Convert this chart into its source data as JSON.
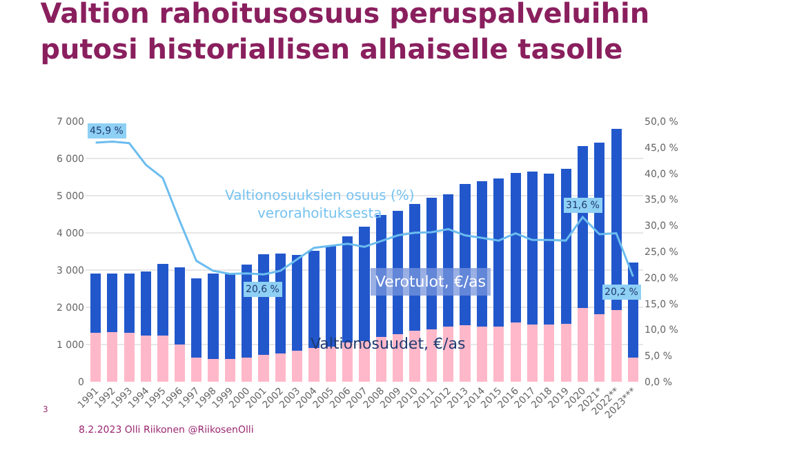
{
  "chart_data": {
    "type": "bar",
    "title": "Valtion rahoitusosuus peruspalveluihin\nputosi historiallisen alhaiselle tasolle",
    "categories": [
      "1991",
      "1992",
      "1993",
      "1994",
      "1995",
      "1996",
      "1997",
      "1998",
      "1999",
      "2000",
      "2001",
      "2002",
      "2003",
      "2004",
      "2005",
      "2006",
      "2007",
      "2008",
      "2009",
      "2010",
      "2011",
      "2012",
      "2013",
      "2014",
      "2015",
      "2016",
      "2017",
      "2018",
      "2019",
      "2020",
      "2021*",
      "2022**",
      "2023***"
    ],
    "stacked": true,
    "series": [
      {
        "name": "Valtionosuudet, €/as",
        "color": "#ffb8c9",
        "values": [
          1320,
          1330,
          1320,
          1250,
          1250,
          1000,
          650,
          620,
          620,
          650,
          720,
          760,
          830,
          900,
          950,
          1050,
          1100,
          1200,
          1270,
          1370,
          1410,
          1480,
          1520,
          1480,
          1480,
          1600,
          1540,
          1530,
          1550,
          1990,
          1820,
          1920,
          640
        ]
      },
      {
        "name": "Verotulot, €/as",
        "color": "#2257cc",
        "values": [
          1580,
          1570,
          1580,
          1720,
          1910,
          2070,
          2120,
          2280,
          2310,
          2490,
          2700,
          2680,
          2570,
          2610,
          2720,
          2860,
          3060,
          3290,
          3330,
          3410,
          3530,
          3560,
          3790,
          3900,
          3980,
          4020,
          4100,
          4070,
          4180,
          4340,
          4600,
          4870,
          2570
        ]
      },
      {
        "name": "Valtionosuuksien osuus (%)\nverorahoituksesta",
        "type": "line",
        "axis": "y2",
        "color": "#6cbdef",
        "values": [
          45.9,
          46.1,
          45.8,
          41.6,
          39.1,
          30.9,
          23.2,
          21.3,
          20.7,
          20.8,
          20.6,
          21.3,
          23.5,
          25.7,
          26.1,
          26.5,
          25.9,
          27.0,
          28.1,
          28.6,
          28.7,
          29.3,
          28.1,
          27.6,
          27.1,
          28.5,
          27.2,
          27.2,
          27.1,
          31.6,
          28.3,
          28.5,
          20.2
        ],
        "value_labels": [
          "45,9 %",
          null,
          null,
          null,
          null,
          null,
          null,
          null,
          null,
          null,
          "20,6 %",
          null,
          null,
          null,
          null,
          null,
          null,
          null,
          null,
          null,
          null,
          null,
          null,
          null,
          null,
          null,
          null,
          null,
          null,
          "31,6 %",
          null,
          null,
          "20,2 %"
        ]
      }
    ],
    "ylim": [
      0,
      7000
    ],
    "yticks": [
      0,
      {
        "value": 1000,
        "label": "1 000"
      },
      {
        "value": 2000,
        "label": "2 000"
      },
      {
        "value": 3000,
        "label": "3 000"
      },
      {
        "value": 4000,
        "label": "4 000"
      },
      {
        "value": 5000,
        "label": "5 000"
      },
      {
        "value": 6000,
        "label": "6 000"
      },
      {
        "value": 7000,
        "label": "7 000"
      }
    ],
    "y2lim": [
      0,
      50
    ],
    "y2ticks": [
      {
        "value": 0,
        "label": "0,0 %"
      },
      {
        "value": 5,
        "label": "5,0 %"
      },
      {
        "value": 10,
        "label": "10,0 %"
      },
      {
        "value": 15,
        "label": "15,0 %"
      },
      {
        "value": 20,
        "label": "20,0 %"
      },
      {
        "value": 25,
        "label": "25,0 %"
      },
      {
        "value": 30,
        "label": "30,0 %"
      },
      {
        "value": 35,
        "label": "35,0 %"
      },
      {
        "value": 40,
        "label": "40,0 %"
      },
      {
        "value": 45,
        "label": "45,0 %"
      },
      {
        "value": 50,
        "label": "50,0 %"
      }
    ],
    "grid": "y",
    "legend": false,
    "marker": "none",
    "line_style": "solid",
    "annotations": [
      "3",
      "8.2.2023 Olli Riikonen @RiikosenOlli"
    ]
  }
}
